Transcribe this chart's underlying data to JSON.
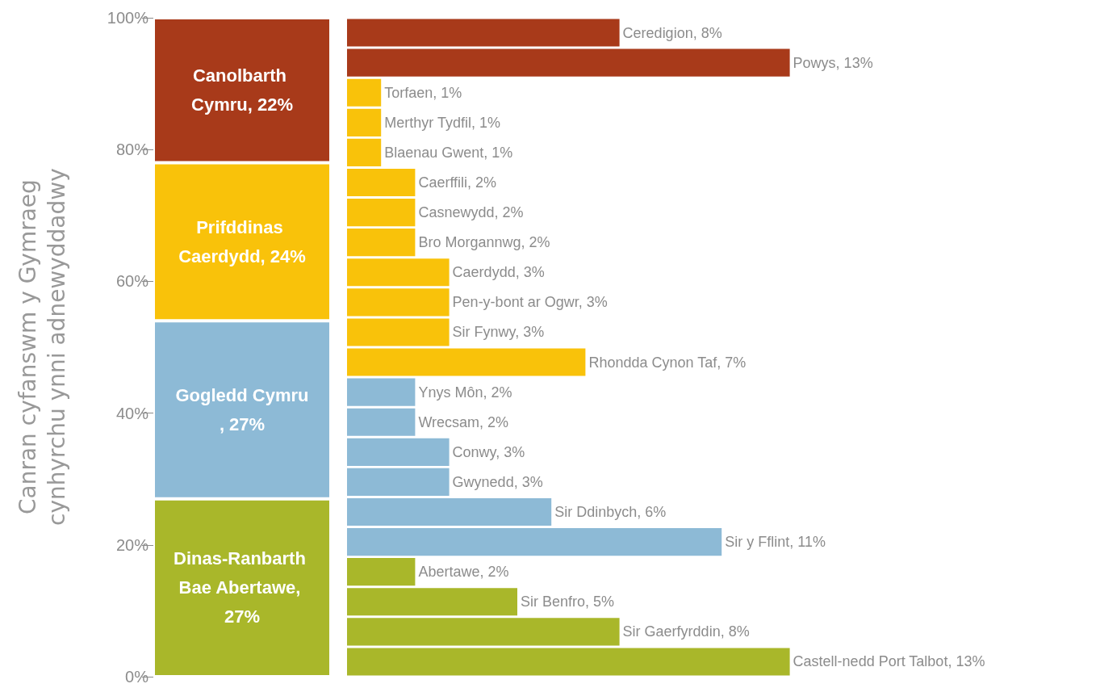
{
  "chart_data": [
    {
      "type": "bar",
      "stacked": true,
      "categories": [
        null
      ],
      "ylim": [
        0,
        100
      ],
      "yticks": [
        {
          "value": 0,
          "label": "0%"
        },
        {
          "value": 20,
          "label": "20%"
        },
        {
          "value": 40,
          "label": "40%"
        },
        {
          "value": 60,
          "label": "60%"
        },
        {
          "value": 80,
          "label": "80%"
        },
        {
          "value": 100,
          "label": "100%"
        }
      ],
      "ylabel": "Canran cyfanswm y Gymraeg cynhyrchu ynni adnewyddadwy",
      "grid": false,
      "series": [
        {
          "color": "#a9b72a",
          "values": [
            27
          ],
          "value_labels": [
            "Dinas-Ranbarth Bae Abertawe, 27%"
          ]
        },
        {
          "color": "#8dbad6",
          "values": [
            27
          ],
          "value_labels": [
            "Gogledd Cymru, 27%"
          ]
        },
        {
          "color": "#f9c20a",
          "values": [
            24
          ],
          "value_labels": [
            "Prifddinas Caerdydd, 24%"
          ]
        },
        {
          "color": "#a83a1a",
          "values": [
            22
          ],
          "value_labels": [
            "Canolbarth Cymru, 22%"
          ]
        }
      ]
    },
    {
      "type": "bar",
      "orientation": "horizontal",
      "tick_labels": false,
      "grid": false,
      "categories": [
        null,
        null,
        null,
        null,
        null,
        null,
        null,
        null,
        null,
        null,
        null,
        null,
        null,
        null,
        null,
        null,
        null,
        null,
        null,
        null,
        null,
        null
      ],
      "values": [
        8,
        13,
        1,
        1,
        1,
        2,
        2,
        2,
        3,
        3,
        3,
        7,
        2,
        2,
        3,
        3,
        6,
        11,
        2,
        5,
        8,
        13
      ],
      "colors": [
        "#a83a1a",
        "#a83a1a",
        "#f9c20a",
        "#f9c20a",
        "#f9c20a",
        "#f9c20a",
        "#f9c20a",
        "#f9c20a",
        "#f9c20a",
        "#f9c20a",
        "#f9c20a",
        "#f9c20a",
        "#8dbad6",
        "#8dbad6",
        "#8dbad6",
        "#8dbad6",
        "#8dbad6",
        "#8dbad6",
        "#a9b72a",
        "#a9b72a",
        "#a9b72a",
        "#a9b72a"
      ],
      "value_labels": [
        "Ceredigion, 8%",
        "Powys, 13%",
        "Torfaen, 1%",
        "Merthyr Tydfil, 1%",
        "Blaenau Gwent, 1%",
        "Caerffili, 2%",
        "Casnewydd, 2%",
        "Bro Morgannwg, 2%",
        "Caerdydd, 3%",
        "Pen-y-bont ar Ogwr, 3%",
        "Sir Fynwy, 3%",
        "Rhondda Cynon Taf, 7%",
        "Ynys Môn, 2%",
        "Wrecsam, 2%",
        "Conwy, 3%",
        "Gwynedd, 3%",
        "Sir Ddinbych, 6%",
        "Sir y Fflint, 11%",
        "Abertawe, 2%",
        "Sir Benfro, 5%",
        "Sir Gaerfyrddin, 8%",
        "Castell-nedd Port Talbot, 13%"
      ]
    }
  ]
}
